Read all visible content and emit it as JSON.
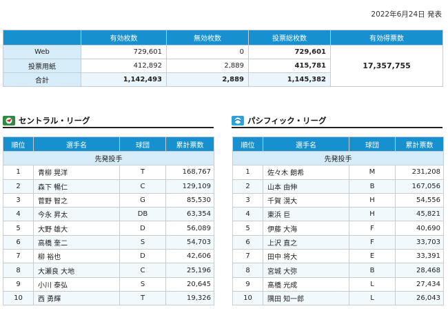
{
  "pub_date": "2022年6月24日 発表",
  "summary": {
    "headers": [
      "",
      "有効枚数",
      "無効枚数",
      "投票総枚数",
      "有効得票数"
    ],
    "rows": [
      {
        "label": "Web",
        "valid": "729,601",
        "invalid": "0",
        "total": "729,601"
      },
      {
        "label": "投票用紙",
        "valid": "412,892",
        "invalid": "2,889",
        "total": "415,781"
      },
      {
        "label": "合計",
        "valid": "1,142,493",
        "invalid": "2,889",
        "total": "1,145,382"
      }
    ],
    "effective_votes": "17,357,755"
  },
  "central": {
    "title": "セントラル・リーグ",
    "headers": [
      "順位",
      "選手名",
      "球団",
      "累計票数"
    ],
    "section": "先発投手",
    "rows": [
      {
        "rank": "1",
        "name": "青柳 晃洋",
        "team": "T",
        "votes": "168,767"
      },
      {
        "rank": "2",
        "name": "森下 暢仁",
        "team": "C",
        "votes": "129,109"
      },
      {
        "rank": "3",
        "name": "菅野 智之",
        "team": "G",
        "votes": "85,530"
      },
      {
        "rank": "4",
        "name": "今永 昇太",
        "team": "DB",
        "votes": "63,354"
      },
      {
        "rank": "5",
        "name": "大野 雄大",
        "team": "D",
        "votes": "56,089"
      },
      {
        "rank": "6",
        "name": "高橋 奎二",
        "team": "S",
        "votes": "54,703"
      },
      {
        "rank": "7",
        "name": "柳 裕也",
        "team": "D",
        "votes": "42,606"
      },
      {
        "rank": "8",
        "name": "大瀬良 大地",
        "team": "C",
        "votes": "25,196"
      },
      {
        "rank": "9",
        "name": "小川 泰弘",
        "team": "S",
        "votes": "20,645"
      },
      {
        "rank": "10",
        "name": "西 勇輝",
        "team": "T",
        "votes": "19,326"
      }
    ]
  },
  "pacific": {
    "title": "パシフィック・リーグ",
    "headers": [
      "順位",
      "選手名",
      "球団",
      "累計票数"
    ],
    "section": "先発投手",
    "rows": [
      {
        "rank": "1",
        "name": "佐々木 朗希",
        "team": "M",
        "votes": "231,208"
      },
      {
        "rank": "2",
        "name": "山本 由伸",
        "team": "B",
        "votes": "167,056"
      },
      {
        "rank": "3",
        "name": "千賀 滉大",
        "team": "H",
        "votes": "54,556"
      },
      {
        "rank": "4",
        "name": "東浜 巨",
        "team": "H",
        "votes": "45,821"
      },
      {
        "rank": "5",
        "name": "伊藤 大海",
        "team": "F",
        "votes": "40,690"
      },
      {
        "rank": "6",
        "name": "上沢 直之",
        "team": "F",
        "votes": "33,703"
      },
      {
        "rank": "7",
        "name": "田中 将大",
        "team": "E",
        "votes": "33,391"
      },
      {
        "rank": "8",
        "name": "宮城 大弥",
        "team": "B",
        "votes": "28,468"
      },
      {
        "rank": "9",
        "name": "髙橋 光成",
        "team": "L",
        "votes": "27,434"
      },
      {
        "rank": "10",
        "name": "隅田 知一郎",
        "team": "L",
        "votes": "26,043"
      }
    ]
  },
  "icons": {
    "central": "central-league-logo-icon",
    "pacific": "pacific-league-logo-icon"
  }
}
